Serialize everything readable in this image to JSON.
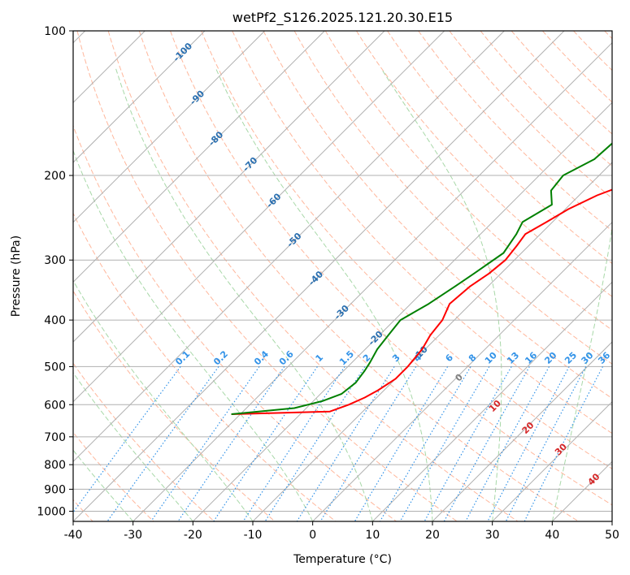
{
  "chart_data": {
    "type": "skew-t",
    "title": "wetPf2_S126.2025.121.20.30.E15",
    "xlabel": "Temperature (°C)",
    "ylabel": "Pressure (hPa)",
    "xlim": [
      -40,
      50
    ],
    "ylim_hpa": [
      1050,
      100
    ],
    "y_scale": "log",
    "x_ticks": [
      "-40",
      "-30",
      "-20",
      "-10",
      "0",
      "10",
      "20",
      "30",
      "40",
      "50"
    ],
    "x_tick_values": [
      -40,
      -30,
      -20,
      -10,
      0,
      10,
      20,
      30,
      40,
      50
    ],
    "y_ticks": [
      "100",
      "200",
      "300",
      "400",
      "500",
      "600",
      "700",
      "800",
      "900",
      "1000"
    ],
    "y_tick_values": [
      100,
      200,
      300,
      400,
      500,
      600,
      700,
      800,
      900,
      1000
    ],
    "grid": true,
    "series": [
      {
        "key": "temperature",
        "color": "#ff0000",
        "points": [
          [
            628,
            -31.5
          ],
          [
            620,
            -15.5
          ],
          [
            600,
            -13.5
          ],
          [
            580,
            -12.0
          ],
          [
            560,
            -11.0
          ],
          [
            530,
            -10.0
          ],
          [
            500,
            -10.0
          ],
          [
            460,
            -10.5
          ],
          [
            430,
            -11.5
          ],
          [
            400,
            -12.0
          ],
          [
            370,
            -13.5
          ],
          [
            340,
            -13.0
          ],
          [
            320,
            -12.0
          ],
          [
            300,
            -11.5
          ],
          [
            280,
            -12.0
          ],
          [
            265,
            -12.5
          ],
          [
            250,
            -11.0
          ],
          [
            235,
            -9.5
          ],
          [
            220,
            -7.0
          ],
          [
            200,
            -1.5
          ],
          [
            180,
            1.5
          ],
          [
            160,
            5.5
          ],
          [
            140,
            9.0
          ],
          [
            125,
            11.5
          ],
          [
            110,
            13.0
          ],
          [
            100,
            15.5
          ]
        ]
      },
      {
        "key": "dewpoint",
        "color": "#008000",
        "points": [
          [
            628,
            -31.5
          ],
          [
            610,
            -22.0
          ],
          [
            590,
            -18.5
          ],
          [
            570,
            -16.5
          ],
          [
            540,
            -16.0
          ],
          [
            510,
            -16.5
          ],
          [
            490,
            -17.0
          ],
          [
            460,
            -18.0
          ],
          [
            430,
            -18.5
          ],
          [
            400,
            -19.0
          ],
          [
            370,
            -17.0
          ],
          [
            340,
            -15.5
          ],
          [
            320,
            -14.5
          ],
          [
            290,
            -13.0
          ],
          [
            265,
            -14.0
          ],
          [
            250,
            -15.0
          ],
          [
            230,
            -13.0
          ],
          [
            215,
            -15.5
          ],
          [
            200,
            -16.0
          ],
          [
            185,
            -13.5
          ],
          [
            165,
            -13.0
          ],
          [
            145,
            -14.0
          ],
          [
            130,
            -13.0
          ],
          [
            115,
            -11.5
          ],
          [
            100,
            -9.0
          ]
        ]
      }
    ],
    "dry_adiabats": [
      -100,
      -90,
      -80,
      -70,
      -60,
      -50,
      -40,
      -30,
      -20,
      -10,
      0,
      10,
      20,
      30,
      40,
      50,
      60,
      70,
      80,
      90,
      100,
      110,
      120,
      130,
      140,
      150,
      160,
      170,
      180,
      190,
      200
    ],
    "moist_adiabats": [
      -30,
      -20,
      -10,
      0,
      10,
      20,
      30,
      40,
      50
    ],
    "isotherm_labels": [
      "-100",
      "-90",
      "-80",
      "-70",
      "-60",
      "-50",
      "-40",
      "-30",
      "-20",
      "-10"
    ],
    "isotherm_label_values": [
      -100,
      -90,
      -80,
      -70,
      -60,
      -50,
      -40,
      -30,
      -20,
      -10
    ],
    "isotherm_label_pressures": [
      111,
      138,
      168,
      190,
      226,
      273,
      328,
      386,
      437,
      470
    ],
    "mixing_ratio_labels": [
      "0.1",
      "0.2",
      "0.4",
      "0.6",
      "1",
      "1.5",
      "2",
      "3",
      "4",
      "6",
      "8",
      "10",
      "13",
      "16",
      "20",
      "25",
      "30",
      "36"
    ],
    "mixing_ratio_values": [
      0.1,
      0.2,
      0.4,
      0.6,
      1,
      1.5,
      2,
      3,
      4,
      6,
      8,
      10,
      13,
      16,
      20,
      25,
      30,
      36
    ],
    "theta_labels": [
      "0",
      "10",
      "20",
      "30",
      "40"
    ],
    "theta_values": [
      0,
      10,
      20,
      30,
      40
    ],
    "colors": {
      "temperature": "#ff0000",
      "dewpoint": "#008000",
      "isobar": "#b0b0b0",
      "isotherm": "#b0b0b0",
      "dry_adiabat": "#ffb79c",
      "moist_adiabat": "#a8d8a8",
      "mixing_ratio": "#3393e8",
      "isotherm_label": "#2a6fb0",
      "theta_zero_label": "#808080",
      "theta_label": "#d62728"
    }
  }
}
